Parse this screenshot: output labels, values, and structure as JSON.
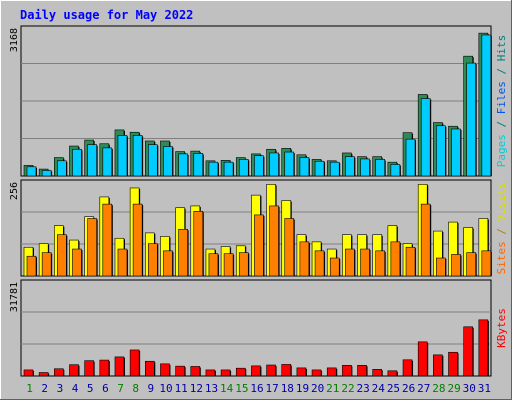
{
  "chart_data": {
    "type": "bar",
    "title": "Daily usage for May 2022",
    "categories": [
      "1",
      "2",
      "3",
      "4",
      "5",
      "6",
      "7",
      "8",
      "9",
      "10",
      "11",
      "12",
      "13",
      "14",
      "15",
      "16",
      "17",
      "18",
      "19",
      "20",
      "21",
      "22",
      "23",
      "24",
      "25",
      "26",
      "27",
      "28",
      "29",
      "30",
      "31"
    ],
    "weekend_days": [
      "1",
      "7",
      "8",
      "14",
      "15",
      "21",
      "22",
      "28",
      "29"
    ],
    "panels": [
      {
        "id": "hits",
        "max_label": "3168",
        "ymax": 3168,
        "axis_label": [
          {
            "text": "Pages",
            "color": "#00ccdd"
          },
          {
            "text": " / ",
            "color": "#008080"
          },
          {
            "text": "Files",
            "color": "#0055ee"
          },
          {
            "text": " / ",
            "color": "#008080"
          },
          {
            "text": "Hits",
            "color": "#008080"
          }
        ],
        "series": [
          {
            "name": "Hits",
            "color": "#2e8b57",
            "values": [
              230,
              150,
              400,
              650,
              780,
              700,
              1000,
              950,
              760,
              760,
              530,
              540,
              330,
              340,
              400,
              480,
              580,
              600,
              460,
              360,
              330,
              500,
              420,
              420,
              300,
              940,
              1770,
              1160,
              1080,
              2600,
              3100
            ]
          },
          {
            "name": "Files",
            "color": "#00ccff",
            "values": [
              200,
              120,
              330,
              580,
              680,
              610,
              880,
              880,
              680,
              640,
              480,
              490,
              300,
              300,
              360,
              440,
              500,
              520,
              400,
              320,
              300,
              420,
              370,
              360,
              250,
              800,
              1680,
              1090,
              1020,
              2450,
              3060
            ]
          }
        ]
      },
      {
        "id": "visits",
        "max_label": "256",
        "ymax": 256,
        "axis_label": [
          {
            "text": "Sites",
            "color": "#ff6600"
          },
          {
            "text": " / ",
            "color": "#aa8800"
          },
          {
            "text": "Visits",
            "color": "#dddd00"
          }
        ],
        "series": [
          {
            "name": "Visits",
            "color": "#ffff00",
            "values": [
              80,
              90,
              140,
              100,
              165,
              220,
              105,
              245,
              120,
              110,
              190,
              195,
              75,
              82,
              84,
              225,
              255,
              210,
              115,
              95,
              75,
              115,
              115,
              115,
              140,
              90,
              255,
              125,
              150,
              135,
              160
            ]
          },
          {
            "name": "Sites",
            "color": "#ff8000",
            "values": [
              55,
              65,
              115,
              75,
              160,
              200,
              75,
              200,
              90,
              70,
              130,
              180,
              62,
              62,
              65,
              170,
              195,
              160,
              95,
              70,
              50,
              75,
              75,
              70,
              95,
              80,
              200,
              50,
              60,
              65,
              70
            ]
          }
        ]
      },
      {
        "id": "kbytes",
        "max_label": "31781",
        "ymax": 31781,
        "axis_label": [
          {
            "text": "KBytes",
            "color": "#ff0000"
          }
        ],
        "series": [
          {
            "name": "KBytes",
            "color": "#ff0000",
            "values": [
              2100,
              1200,
              2500,
              3900,
              5300,
              5500,
              6600,
              9000,
              5100,
              4200,
              3400,
              3300,
              2100,
              2100,
              2700,
              3500,
              3800,
              4000,
              2800,
              2100,
              2800,
              3700,
              3700,
              2300,
              1800,
              5600,
              11800,
              7300,
              8200,
              17000,
              19400
            ]
          }
        ]
      }
    ],
    "colors": {
      "background": "#c0c0c0",
      "plot": "#c0c0c0",
      "title": "#0000ff",
      "weekday_label": "#0000aa",
      "weekend_label": "#008000",
      "max_label": "#000000",
      "gridline": "#808080"
    }
  }
}
